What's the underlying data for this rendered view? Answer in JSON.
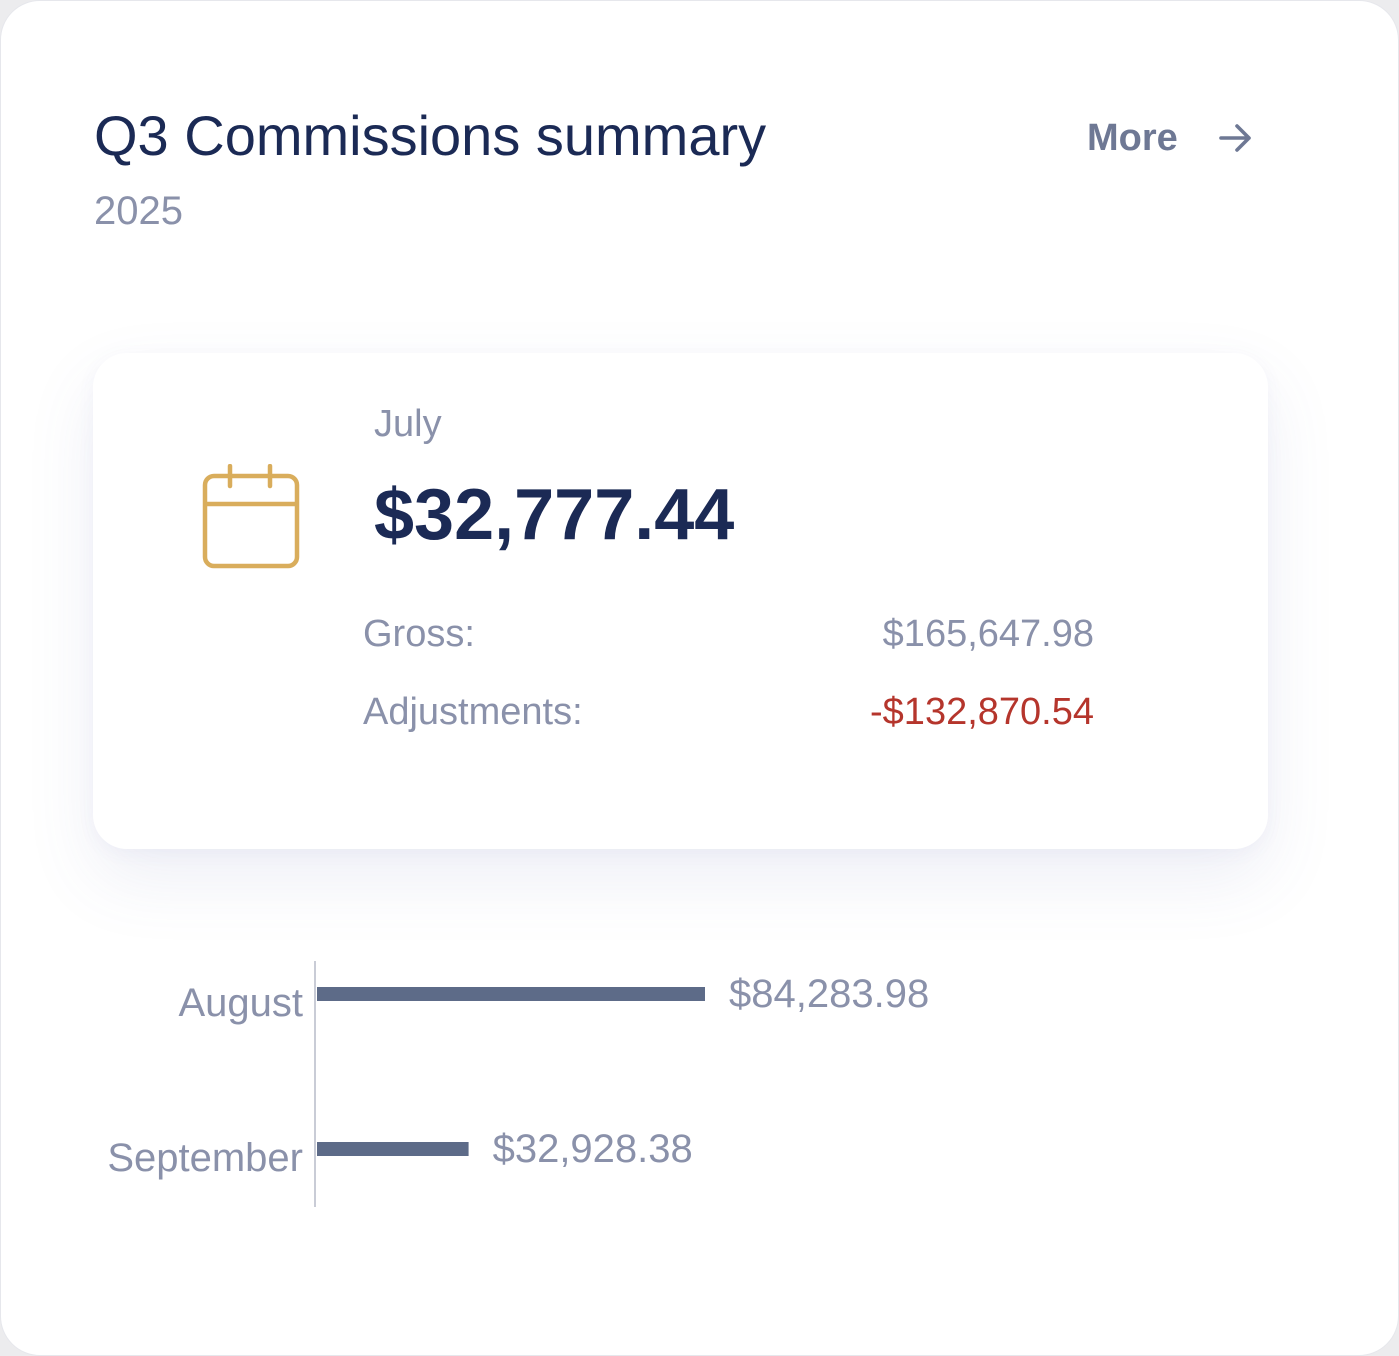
{
  "header": {
    "title": "Q3 Commissions summary",
    "subtitle": "2025",
    "more_label": "More",
    "more_icon": "arrow-right-icon"
  },
  "summary_card": {
    "icon": "calendar-icon",
    "icon_color": "#d9ad5c",
    "month": "July",
    "amount": "$32,777.44",
    "gross_label": "Gross:",
    "gross_value": "$165,647.98",
    "adjustments_label": "Adjustments:",
    "adjustments_value": "-$132,870.54",
    "negative_color": "#b5352c"
  },
  "chart_data": {
    "type": "bar",
    "orientation": "horizontal",
    "categories": [
      "August",
      "September"
    ],
    "values": [
      84283.98,
      32928.38
    ],
    "value_labels": [
      "$84,283.98",
      "$32,928.38"
    ],
    "bar_color": "#5d6b88"
  }
}
